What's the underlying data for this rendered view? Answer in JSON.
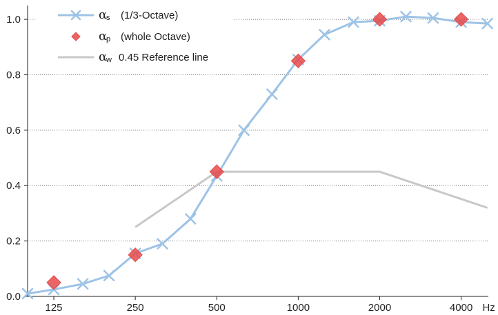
{
  "chart_data": {
    "type": "line",
    "title": "",
    "xlabel": "",
    "x_unit": "Hz",
    "ylabel": "",
    "x_scale": "log",
    "xlim": [
      100,
      5040
    ],
    "ylim": [
      0,
      1.05
    ],
    "x_tick_values": [
      125,
      250,
      500,
      1000,
      2000,
      4000
    ],
    "x_tick_labels": [
      "125",
      "250",
      "500",
      "1000",
      "2000",
      "4000"
    ],
    "y_tick_values": [
      0,
      0.2,
      0.4,
      0.6,
      0.8,
      1.0
    ],
    "y_tick_labels": [
      "0.0",
      "0.2",
      "0.4",
      "0.6",
      "0.8",
      "1.0"
    ],
    "grid": "horizontal dotted",
    "legend_position": "top-left",
    "series": [
      {
        "name": "(1/3-Octave)",
        "symbol": "α",
        "subscript": "s",
        "color": "#9dc3e6",
        "marker": "x",
        "x": [
          100,
          125,
          160,
          200,
          250,
          315,
          400,
          500,
          630,
          800,
          1000,
          1250,
          1600,
          2000,
          2500,
          3150,
          4000,
          5000
        ],
        "y": [
          0.01,
          0.025,
          0.045,
          0.075,
          0.155,
          0.19,
          0.28,
          0.435,
          0.6,
          0.73,
          0.855,
          0.945,
          0.99,
          0.995,
          1.01,
          1.005,
          0.99,
          0.985
        ]
      },
      {
        "name": "(whole Octave)",
        "symbol": "α",
        "subscript": "p",
        "color": "#e84a4a",
        "marker": "diamond",
        "x": [
          125,
          250,
          500,
          1000,
          2000,
          4000
        ],
        "y": [
          0.05,
          0.15,
          0.45,
          0.85,
          1.0,
          1.0
        ]
      },
      {
        "name": "0.45 Reference line",
        "symbol": "α",
        "subscript": "w",
        "color": "#c8c8c8",
        "marker": "none",
        "x": [
          250,
          500,
          1000,
          2000,
          5000
        ],
        "y": [
          0.25,
          0.45,
          0.45,
          0.45,
          0.32
        ]
      }
    ]
  }
}
